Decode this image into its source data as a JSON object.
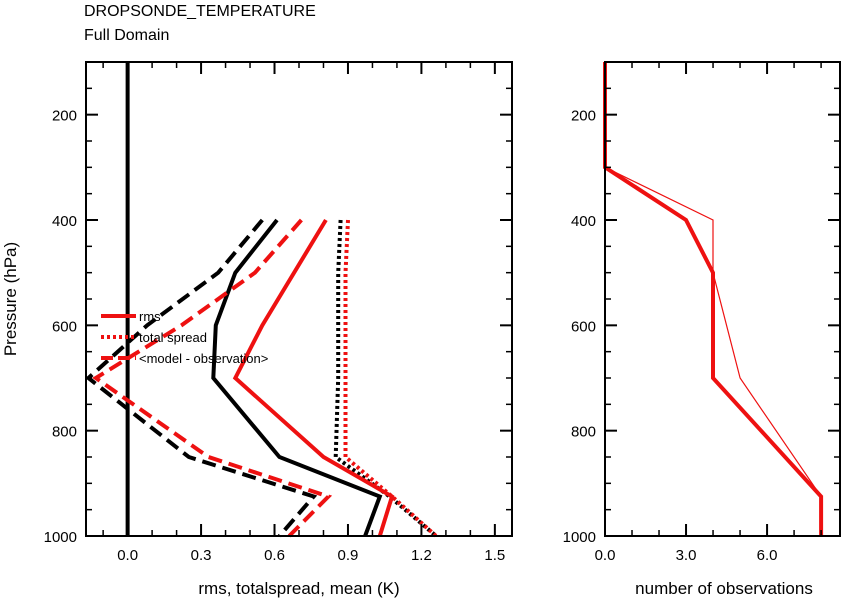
{
  "title": "DROPSONDE_TEMPERATURE",
  "subtitle": "Full Domain",
  "colors": {
    "black": "#000000",
    "red": "#ee1111"
  },
  "chart_data": [
    {
      "type": "line",
      "panel": "left",
      "ylabel": "Pressure (hPa)",
      "xlabel": "rms, totalspread, mean (K)",
      "xlim": [
        -0.17,
        1.57
      ],
      "ylim": [
        100,
        1000
      ],
      "y_inverted": true,
      "xticks": [
        0.0,
        0.3,
        0.6,
        0.9,
        1.2,
        1.5
      ],
      "xtick_labels": [
        "0.0",
        "0.3",
        "0.6",
        "0.9",
        "1.2",
        "1.5"
      ],
      "yticks": [
        200,
        400,
        600,
        800,
        1000
      ],
      "ytick_labels": [
        "200",
        "400",
        "600",
        "800",
        "1000"
      ],
      "zero_line": 0.0,
      "legend": {
        "placement": "left-middle",
        "entries": [
          {
            "label": "rms",
            "style": "solid"
          },
          {
            "label": "total spread",
            "style": "dotted"
          },
          {
            "label": "<model - observation>",
            "style": "dashed"
          }
        ]
      },
      "series": [
        {
          "color": "#000000",
          "style": "solid",
          "points": [
            [
              0.61,
              400
            ],
            [
              0.44,
              500
            ],
            [
              0.36,
              600
            ],
            [
              0.35,
              700
            ],
            [
              0.62,
              850
            ],
            [
              1.03,
              925
            ],
            [
              0.97,
              1000
            ]
          ]
        },
        {
          "color": "#000000",
          "style": "dotted",
          "points": [
            [
              0.87,
              400
            ],
            [
              0.86,
              500
            ],
            [
              0.86,
              600
            ],
            [
              0.86,
              700
            ],
            [
              0.85,
              850
            ],
            [
              1.07,
              925
            ],
            [
              1.26,
              1000
            ]
          ]
        },
        {
          "color": "#000000",
          "style": "dashed",
          "points": [
            [
              0.55,
              400
            ],
            [
              0.37,
              500
            ],
            [
              0.08,
              600
            ],
            [
              -0.16,
              700
            ],
            [
              0.25,
              850
            ],
            [
              0.76,
              925
            ],
            [
              0.62,
              1000
            ]
          ]
        },
        {
          "color": "#ee1111",
          "style": "solid",
          "points": [
            [
              0.81,
              400
            ],
            [
              0.55,
              600
            ],
            [
              0.44,
              700
            ],
            [
              0.8,
              850
            ],
            [
              1.08,
              925
            ],
            [
              1.03,
              1000
            ]
          ]
        },
        {
          "color": "#ee1111",
          "style": "dotted",
          "points": [
            [
              0.9,
              400
            ],
            [
              0.89,
              500
            ],
            [
              0.89,
              600
            ],
            [
              0.89,
              700
            ],
            [
              0.89,
              850
            ],
            [
              1.08,
              925
            ],
            [
              1.26,
              1000
            ]
          ]
        },
        {
          "color": "#ee1111",
          "style": "dashed",
          "points": [
            [
              0.71,
              400
            ],
            [
              0.52,
              500
            ],
            [
              0.22,
              600
            ],
            [
              -0.13,
              700
            ],
            [
              0.33,
              850
            ],
            [
              0.82,
              925
            ],
            [
              0.66,
              1000
            ]
          ]
        }
      ]
    },
    {
      "type": "line",
      "panel": "right",
      "xlabel": "number of observations",
      "xlim": [
        0,
        8.7
      ],
      "ylim": [
        100,
        1000
      ],
      "y_inverted": true,
      "xticks": [
        0,
        3,
        6
      ],
      "xtick_labels": [
        "0.0",
        "3.0",
        "6.0"
      ],
      "yticks": [
        200,
        400,
        600,
        800,
        1000
      ],
      "ytick_labels": [
        "200",
        "400",
        "600",
        "800",
        "1000"
      ],
      "series": [
        {
          "color": "#ee1111",
          "weight": "thick",
          "points": [
            [
              0,
              100
            ],
            [
              0,
              300
            ],
            [
              3,
              400
            ],
            [
              4,
              500
            ],
            [
              4,
              700
            ],
            [
              8,
              925
            ],
            [
              8,
              1000
            ]
          ]
        },
        {
          "color": "#ee1111",
          "weight": "thin",
          "points": [
            [
              0,
              100
            ],
            [
              0,
              300
            ],
            [
              4,
              400
            ],
            [
              4,
              500
            ],
            [
              5,
              700
            ],
            [
              8,
              925
            ],
            [
              8,
              1000
            ]
          ]
        }
      ]
    }
  ]
}
